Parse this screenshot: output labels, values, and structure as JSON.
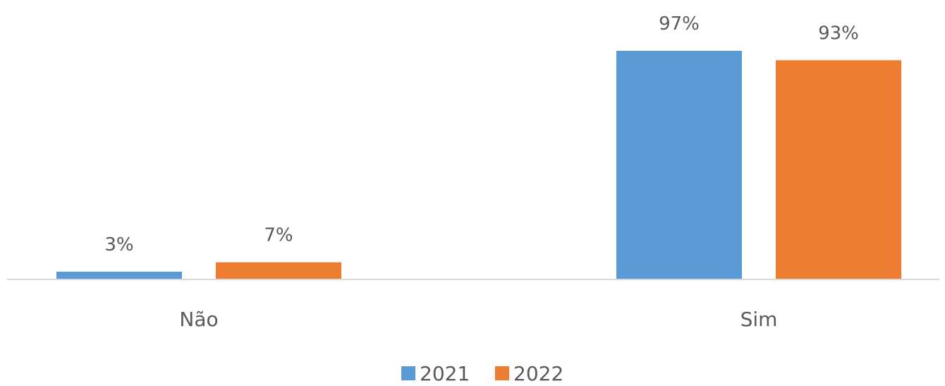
{
  "chart_data": {
    "type": "bar",
    "title": "",
    "xlabel": "",
    "ylabel": "",
    "categories": [
      "Não",
      "Sim"
    ],
    "series": [
      {
        "name": "2021",
        "color": "#5B9BD5",
        "values": [
          3,
          97
        ],
        "labels": [
          "3%",
          "97%"
        ]
      },
      {
        "name": "2022",
        "color": "#ED7D31",
        "values": [
          7,
          93
        ],
        "labels": [
          "7%",
          "93%"
        ]
      }
    ],
    "ylim": [
      0,
      100
    ],
    "grid": false,
    "legend": "bottom",
    "axis_color": "#D9D9D9",
    "text_color": "#595959"
  }
}
